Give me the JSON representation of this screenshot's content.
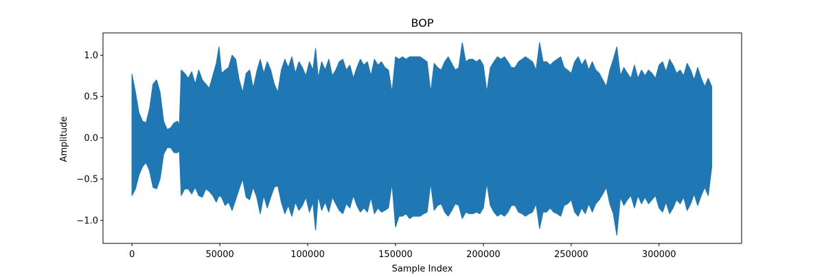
{
  "chart_data": {
    "type": "line",
    "title": "BOP",
    "xlabel": "Sample Index",
    "ylabel": "Amplitude",
    "xlim": [
      -16500,
      347000
    ],
    "ylim": [
      -1.28,
      1.27
    ],
    "x_ticks": [
      0,
      50000,
      100000,
      150000,
      200000,
      250000,
      300000
    ],
    "x_tick_labels": [
      "0",
      "50000",
      "100000",
      "150000",
      "200000",
      "250000",
      "300000"
    ],
    "y_ticks": [
      -1.0,
      -0.5,
      0.0,
      0.5,
      1.0
    ],
    "y_tick_labels": [
      "−1.0",
      "−0.5",
      "0.0",
      "0.5",
      "1.0"
    ],
    "grid": false,
    "legend": "none",
    "series_color": "#1f77b4",
    "series": [
      {
        "x": [
          0,
          2000,
          4000,
          6000,
          8000,
          10000,
          12000,
          14000,
          16000,
          18000,
          20000,
          22000,
          24000,
          26000,
          27000,
          28000,
          30000,
          32000,
          34000,
          36000,
          38000,
          40000,
          42000,
          44000,
          46000,
          48000,
          49500,
          51000,
          53000,
          55000,
          57000,
          59000,
          61000,
          63000,
          65000,
          67000,
          69000,
          71000,
          73000,
          75000,
          77000,
          79000,
          81000,
          83000,
          85000,
          87000,
          89000,
          91000,
          93000,
          95000,
          97000,
          99000,
          101000,
          103000,
          104500,
          106000,
          108000,
          110000,
          112000,
          114000,
          116000,
          118000,
          120000,
          122000,
          124000,
          126000,
          128000,
          130000,
          132000,
          134000,
          136000,
          138000,
          140000,
          142000,
          144000,
          146000,
          148000,
          150000,
          152000,
          154000,
          156000,
          158000,
          160000,
          162000,
          164000,
          166000,
          168000,
          170000,
          172000,
          174000,
          176000,
          178000,
          180000,
          182000,
          184000,
          186000,
          188000,
          190000,
          192000,
          194000,
          196000,
          198000,
          200000,
          202000,
          204000,
          206000,
          208000,
          210000,
          212000,
          214000,
          216000,
          218000,
          220000,
          222000,
          224000,
          226000,
          228000,
          230000,
          232000,
          234000,
          236000,
          238000,
          240000,
          242000,
          244000,
          246000,
          248000,
          250000,
          252000,
          254000,
          256000,
          258000,
          260000,
          262000,
          264000,
          266000,
          268000,
          270000,
          272000,
          274000,
          276000,
          278000,
          280000,
          282000,
          284000,
          286000,
          288000,
          290000,
          292000,
          294000,
          296000,
          298000,
          300000,
          302000,
          304000,
          306000,
          308000,
          310000,
          312000,
          314000,
          316000,
          318000,
          320000,
          322000,
          324000,
          326000,
          328000,
          330000
        ],
        "upper": [
          0.77,
          0.55,
          0.3,
          0.2,
          0.18,
          0.35,
          0.65,
          0.7,
          0.55,
          0.2,
          0.1,
          0.12,
          0.18,
          0.2,
          0.15,
          0.82,
          0.78,
          0.72,
          0.8,
          0.65,
          0.82,
          0.7,
          0.65,
          0.6,
          0.75,
          0.9,
          1.1,
          0.78,
          0.82,
          0.85,
          1.0,
          0.95,
          0.7,
          0.55,
          0.78,
          0.82,
          0.6,
          0.8,
          0.95,
          0.78,
          0.92,
          0.82,
          0.65,
          0.55,
          0.82,
          0.95,
          0.85,
          0.98,
          0.78,
          0.92,
          0.85,
          0.75,
          0.92,
          0.82,
          1.08,
          0.72,
          0.92,
          0.82,
          0.95,
          0.75,
          0.82,
          0.92,
          0.95,
          0.82,
          0.88,
          0.72,
          0.85,
          0.95,
          0.88,
          0.92,
          0.75,
          0.95,
          0.88,
          0.92,
          0.85,
          0.82,
          0.55,
          0.98,
          0.95,
          0.98,
          0.95,
          0.98,
          0.98,
          0.98,
          0.98,
          0.95,
          0.92,
          0.55,
          0.9,
          0.85,
          0.82,
          0.92,
          0.98,
          0.9,
          0.82,
          0.85,
          1.15,
          0.92,
          0.95,
          0.95,
          0.92,
          0.95,
          0.88,
          0.55,
          0.85,
          0.92,
          0.98,
          0.95,
          0.98,
          0.92,
          0.85,
          0.85,
          0.92,
          0.95,
          0.98,
          0.95,
          0.92,
          0.82,
          1.15,
          0.92,
          0.92,
          0.88,
          0.92,
          0.95,
          0.98,
          0.85,
          0.82,
          0.78,
          0.92,
          0.98,
          0.88,
          0.95,
          0.82,
          0.92,
          0.82,
          0.78,
          0.7,
          0.62,
          0.82,
          0.95,
          1.1,
          0.75,
          0.85,
          0.78,
          0.72,
          0.88,
          0.72,
          0.82,
          0.75,
          0.82,
          0.78,
          0.72,
          0.88,
          0.92,
          0.8,
          0.95,
          0.88,
          0.78,
          0.82,
          0.75,
          0.9,
          0.82,
          0.7,
          0.85,
          0.72,
          0.62,
          0.72,
          0.62
        ],
        "lower": [
          -0.7,
          -0.62,
          -0.45,
          -0.35,
          -0.3,
          -0.4,
          -0.6,
          -0.62,
          -0.5,
          -0.2,
          -0.12,
          -0.12,
          -0.18,
          -0.18,
          -0.15,
          -0.7,
          -0.62,
          -0.62,
          -0.68,
          -0.6,
          -0.7,
          -0.72,
          -0.62,
          -0.65,
          -0.7,
          -0.78,
          -0.7,
          -0.72,
          -0.82,
          -0.78,
          -0.88,
          -0.75,
          -0.62,
          -0.5,
          -0.72,
          -0.75,
          -0.6,
          -0.72,
          -0.92,
          -0.7,
          -0.85,
          -0.72,
          -0.6,
          -0.58,
          -0.78,
          -0.92,
          -0.82,
          -0.95,
          -0.78,
          -0.88,
          -0.82,
          -0.72,
          -0.9,
          -0.78,
          -1.12,
          -0.7,
          -0.88,
          -0.78,
          -0.9,
          -0.72,
          -0.8,
          -0.88,
          -0.92,
          -0.8,
          -0.85,
          -0.7,
          -0.82,
          -0.9,
          -0.85,
          -0.9,
          -0.72,
          -0.92,
          -0.85,
          -0.9,
          -0.88,
          -0.85,
          -0.55,
          -1.08,
          -0.95,
          -0.95,
          -0.92,
          -0.98,
          -0.95,
          -0.95,
          -0.95,
          -0.92,
          -0.9,
          -0.55,
          -0.88,
          -0.82,
          -0.8,
          -0.9,
          -0.95,
          -0.88,
          -0.8,
          -0.82,
          -0.98,
          -0.9,
          -0.92,
          -0.92,
          -0.9,
          -0.92,
          -0.85,
          -0.55,
          -0.82,
          -0.9,
          -0.95,
          -0.92,
          -0.95,
          -0.9,
          -0.82,
          -0.82,
          -0.9,
          -0.92,
          -0.95,
          -0.92,
          -0.9,
          -0.8,
          -1.1,
          -0.9,
          -0.9,
          -0.85,
          -0.9,
          -0.92,
          -0.95,
          -0.82,
          -0.8,
          -0.75,
          -0.9,
          -0.95,
          -0.85,
          -0.92,
          -0.8,
          -0.9,
          -0.8,
          -0.75,
          -0.68,
          -0.6,
          -0.8,
          -0.92,
          -1.18,
          -0.72,
          -0.82,
          -0.75,
          -0.7,
          -0.85,
          -0.7,
          -0.8,
          -0.72,
          -0.8,
          -0.75,
          -0.7,
          -0.85,
          -0.9,
          -0.78,
          -0.92,
          -0.85,
          -0.75,
          -0.8,
          -0.72,
          -0.88,
          -0.8,
          -0.68,
          -0.82,
          -0.7,
          -0.6,
          -0.7,
          -0.35
        ]
      }
    ]
  }
}
